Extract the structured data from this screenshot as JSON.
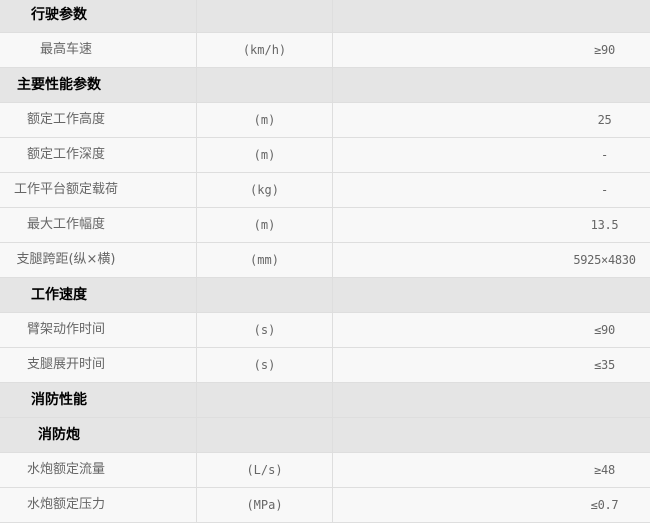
{
  "rows": [
    {
      "type": "header",
      "label": "行驶参数",
      "unit": "",
      "value": ""
    },
    {
      "type": "body",
      "label": "最高车速",
      "unit": "(km/h)",
      "value": "≥90"
    },
    {
      "type": "header",
      "label": "主要性能参数",
      "unit": "",
      "value": ""
    },
    {
      "type": "body",
      "label": "额定工作高度",
      "unit": "(m)",
      "value": "25"
    },
    {
      "type": "body",
      "label": "额定工作深度",
      "unit": "(m)",
      "value": "-"
    },
    {
      "type": "body",
      "label": "工作平台额定载荷",
      "unit": "(kg)",
      "value": "-"
    },
    {
      "type": "body",
      "label": "最大工作幅度",
      "unit": "(m)",
      "value": "13.5"
    },
    {
      "type": "body",
      "label": "支腿跨距(纵×横)",
      "unit": "(mm)",
      "value": "5925×4830"
    },
    {
      "type": "header",
      "label": "工作速度",
      "unit": "",
      "value": ""
    },
    {
      "type": "body",
      "label": "臂架动作时间",
      "unit": "(s)",
      "value": "≤90"
    },
    {
      "type": "body",
      "label": "支腿展开时间",
      "unit": "(s)",
      "value": "≤35"
    },
    {
      "type": "header",
      "label": "消防性能",
      "unit": "",
      "value": ""
    },
    {
      "type": "header",
      "label": "消防炮",
      "unit": "",
      "value": ""
    },
    {
      "type": "body",
      "label": "水炮额定流量",
      "unit": "(L/s)",
      "value": "≥48"
    },
    {
      "type": "body",
      "label": "水炮额定压力",
      "unit": "(MPa)",
      "value": "≤0.7"
    }
  ]
}
